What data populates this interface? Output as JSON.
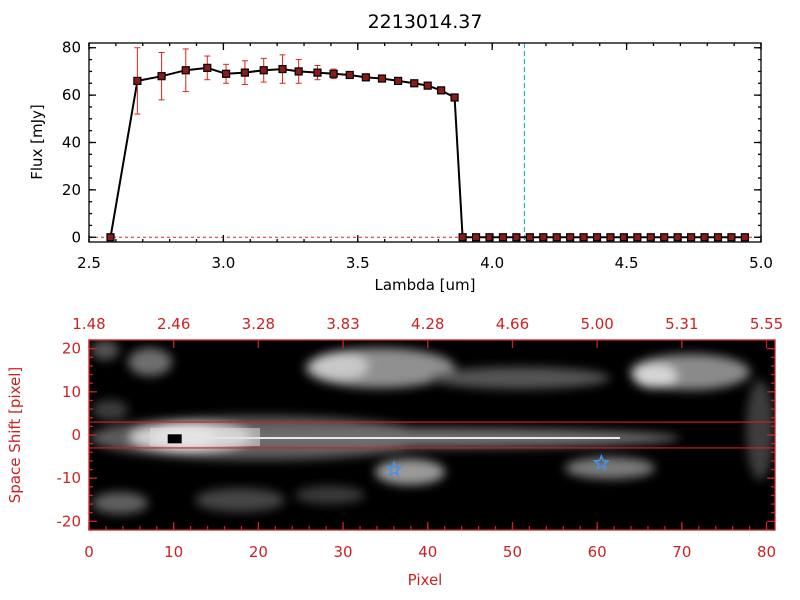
{
  "title": "2213014.37",
  "colors": {
    "axis": "#000000",
    "accent_red": "#cc2222",
    "error_bar": "#dd2222",
    "marker_face": "#8b1a1a",
    "dashed_line": "#33aacc",
    "star": "#4a90e2"
  },
  "chart_data": [
    {
      "type": "line",
      "xlabel": "Lambda [um]",
      "ylabel": "Flux [mJy]",
      "xlim": [
        2.5,
        5.0
      ],
      "ylim": [
        -2,
        82
      ],
      "x_ticks": [
        "2.5",
        "3.0",
        "3.5",
        "4.0",
        "4.5",
        "5.0"
      ],
      "y_ticks": [
        "0",
        "20",
        "40",
        "60",
        "80"
      ],
      "vline_x": 4.12,
      "series": [
        {
          "x": [
            2.58,
            2.68,
            2.77,
            2.86,
            2.94,
            3.01,
            3.08,
            3.15,
            3.22,
            3.28,
            3.35,
            3.41,
            3.47,
            3.53,
            3.59,
            3.65,
            3.71,
            3.76,
            3.81,
            3.86,
            3.89,
            3.94,
            3.99,
            4.04,
            4.09,
            4.14,
            4.19,
            4.24,
            4.29,
            4.34,
            4.39,
            4.44,
            4.49,
            4.54,
            4.59,
            4.64,
            4.69,
            4.74,
            4.79,
            4.84,
            4.89,
            4.94
          ],
          "y": [
            0,
            66,
            68,
            70.5,
            71.5,
            69,
            69.5,
            70.5,
            71,
            70,
            69.5,
            69,
            68.5,
            67.5,
            67,
            66,
            65,
            64,
            62,
            59,
            0,
            0,
            0,
            0,
            0,
            0,
            0,
            0,
            0,
            0,
            0,
            0,
            0,
            0,
            0,
            0,
            0,
            0,
            0,
            0,
            0,
            0
          ],
          "err": [
            0,
            14,
            10,
            9,
            5,
            4,
            5,
            5,
            6,
            5,
            3,
            2,
            1,
            1,
            1,
            1,
            1,
            1,
            1,
            1,
            0,
            0,
            0,
            0,
            0,
            0,
            0,
            0,
            0,
            0,
            0,
            0,
            0,
            0,
            0,
            0,
            0,
            0,
            0,
            0,
            0,
            0
          ]
        }
      ]
    },
    {
      "type": "heatmap",
      "xlabel": "Pixel",
      "ylabel": "Space Shift [pixel]",
      "xlim": [
        0,
        81
      ],
      "ylim": [
        -22,
        22
      ],
      "x_ticks": [
        "0",
        "10",
        "20",
        "30",
        "40",
        "50",
        "60",
        "70",
        "80"
      ],
      "y_ticks": [
        "-20",
        "-10",
        "0",
        "10",
        "20"
      ],
      "top_x_ticks": [
        "1.48",
        "2.46",
        "3.28",
        "3.83",
        "4.28",
        "4.66",
        "5.00",
        "5.31",
        "5.55"
      ],
      "hlines": [
        3,
        -3
      ],
      "stars": [
        [
          36,
          -8
        ],
        [
          60.5,
          -6.5
        ]
      ],
      "marker": [
        10,
        -1
      ]
    }
  ]
}
